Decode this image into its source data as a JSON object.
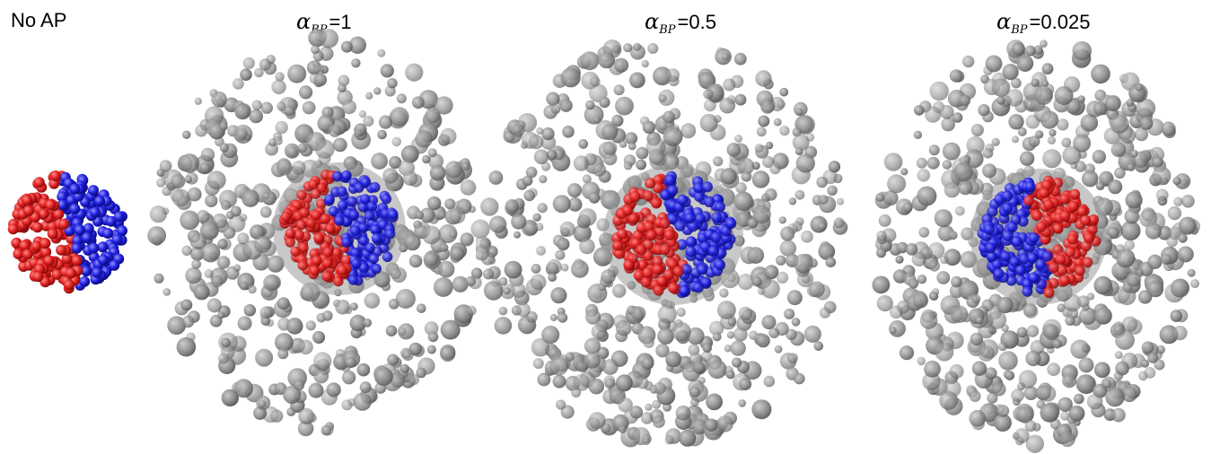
{
  "panels": [
    {
      "id": "no-ap",
      "label": "No AP",
      "left_color": "#e02020",
      "right_color": "#2020e0",
      "has_cloud": false
    },
    {
      "id": "alpha-1",
      "symbol": "α",
      "subscript": "BP",
      "value": "=1",
      "left_color": "#e02020",
      "right_color": "#2020e0",
      "has_cloud": true
    },
    {
      "id": "alpha-0.5",
      "symbol": "α",
      "subscript": "BP",
      "value": "=0.5",
      "left_color": "#e02020",
      "right_color": "#2020e0",
      "has_cloud": true
    },
    {
      "id": "alpha-0.025",
      "symbol": "α",
      "subscript": "BP",
      "value": "=0.025",
      "left_color": "#2020e0",
      "right_color": "#e02020",
      "has_cloud": true
    }
  ],
  "colors": {
    "red": "#e02020",
    "blue": "#2020e0",
    "gray": "#8a8a8a"
  }
}
